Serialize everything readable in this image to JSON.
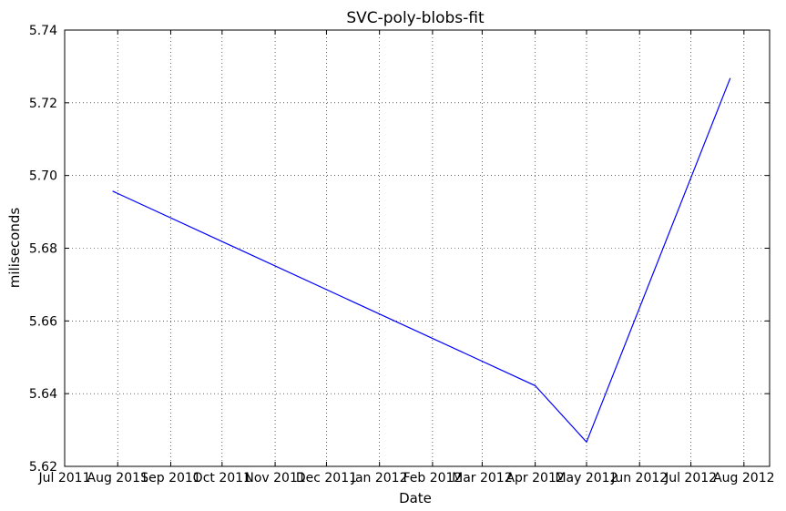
{
  "chart_data": {
    "type": "line",
    "title": "SVC-poly-blobs-fit",
    "xlabel": "Date",
    "ylabel": "miliseconds",
    "xlim": [
      "2011-07-01",
      "2012-08-16"
    ],
    "ylim": [
      5.62,
      5.74
    ],
    "grid": true,
    "x_ticks": [
      {
        "date": "2011-07-01",
        "label": "Jul 2011"
      },
      {
        "date": "2011-08-01",
        "label": "Aug 2011"
      },
      {
        "date": "2011-09-01",
        "label": "Sep 2011"
      },
      {
        "date": "2011-10-01",
        "label": "Oct 2011"
      },
      {
        "date": "2011-11-01",
        "label": "Nov 2011"
      },
      {
        "date": "2011-12-01",
        "label": "Dec 2011"
      },
      {
        "date": "2012-01-01",
        "label": "Jan 2012"
      },
      {
        "date": "2012-02-01",
        "label": "Feb 2012"
      },
      {
        "date": "2012-03-01",
        "label": "Mar 2012"
      },
      {
        "date": "2012-04-01",
        "label": "Apr 2012"
      },
      {
        "date": "2012-05-01",
        "label": "May 2012"
      },
      {
        "date": "2012-06-01",
        "label": "Jun 2012"
      },
      {
        "date": "2012-07-01",
        "label": "Jul 2012"
      },
      {
        "date": "2012-08-01",
        "label": "Aug 2012"
      }
    ],
    "y_ticks": [
      {
        "value": 5.62,
        "label": "5.62"
      },
      {
        "value": 5.64,
        "label": "5.64"
      },
      {
        "value": 5.66,
        "label": "5.66"
      },
      {
        "value": 5.68,
        "label": "5.68"
      },
      {
        "value": 5.7,
        "label": "5.70"
      },
      {
        "value": 5.72,
        "label": "5.72"
      },
      {
        "value": 5.74,
        "label": "5.74"
      }
    ],
    "series": [
      {
        "color": "#0000ff",
        "x": [
          "2011-07-29",
          "2012-04-01",
          "2012-05-01",
          "2012-07-24"
        ],
        "y": [
          5.6957,
          5.6422,
          5.6267,
          5.7268
        ]
      }
    ]
  }
}
